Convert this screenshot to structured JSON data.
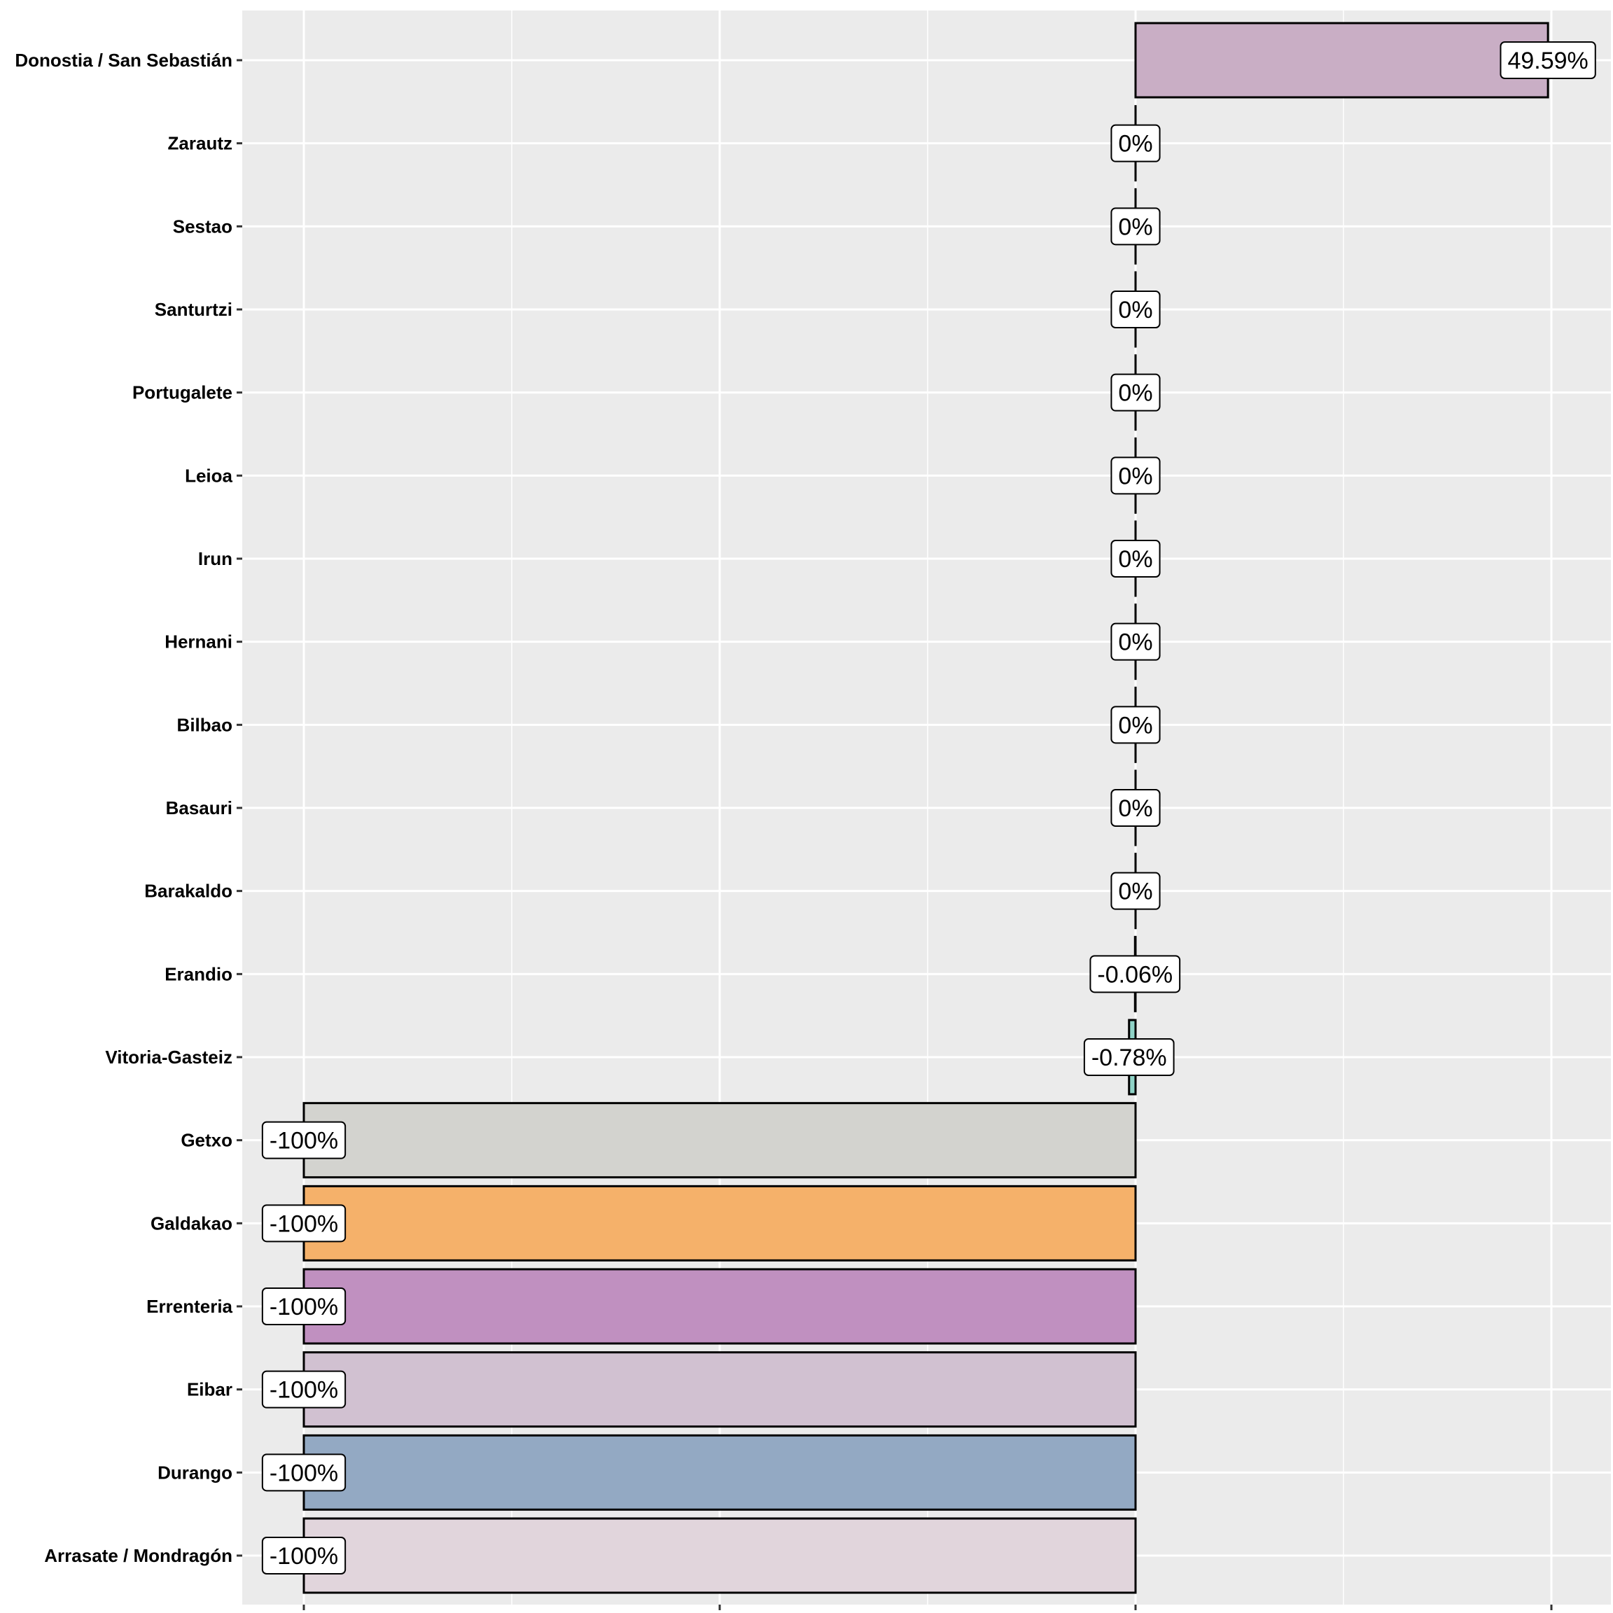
{
  "chart_data": {
    "type": "bar",
    "orientation": "horizontal",
    "title": "",
    "xlabel": "",
    "ylabel": "",
    "xlim": [
      -115,
      54
    ],
    "x_major_ticks": [
      -100,
      -50,
      0,
      50
    ],
    "grid": true,
    "categories": [
      "Donostia / San Sebastián",
      "Zarautz",
      "Sestao",
      "Santurtzi",
      "Portugalete",
      "Leioa",
      "Irun",
      "Hernani",
      "Bilbao",
      "Basauri",
      "Barakaldo",
      "Erandio",
      "Vitoria-Gasteiz",
      "Getxo",
      "Galdakao",
      "Errenteria",
      "Eibar",
      "Durango",
      "Arrasate / Mondragón"
    ],
    "values": [
      49.59,
      0,
      0,
      0,
      0,
      0,
      0,
      0,
      0,
      0,
      0,
      -0.06,
      -0.78,
      -100,
      -100,
      -100,
      -100,
      -100,
      -100
    ],
    "labels": [
      "49.59%",
      "0%",
      "0%",
      "0%",
      "0%",
      "0%",
      "0%",
      "0%",
      "0%",
      "0%",
      "0%",
      "-0.06%",
      "-0.78%",
      "-100%",
      "-100%",
      "-100%",
      "-100%",
      "-100%",
      "-100%"
    ],
    "colors": [
      "#C9AEC5",
      "#CCCCCC",
      "#CCCCCC",
      "#CCCCCC",
      "#CCCCCC",
      "#CCCCCC",
      "#CCCCCC",
      "#CCCCCC",
      "#CCCCCC",
      "#CCCCCC",
      "#CCCCCC",
      "#8FD3C7",
      "#8FD3C7",
      "#D3D3CF",
      "#F5B16A",
      "#C090C0",
      "#D1C1D1",
      "#93A9C3",
      "#E1D5DC"
    ]
  }
}
